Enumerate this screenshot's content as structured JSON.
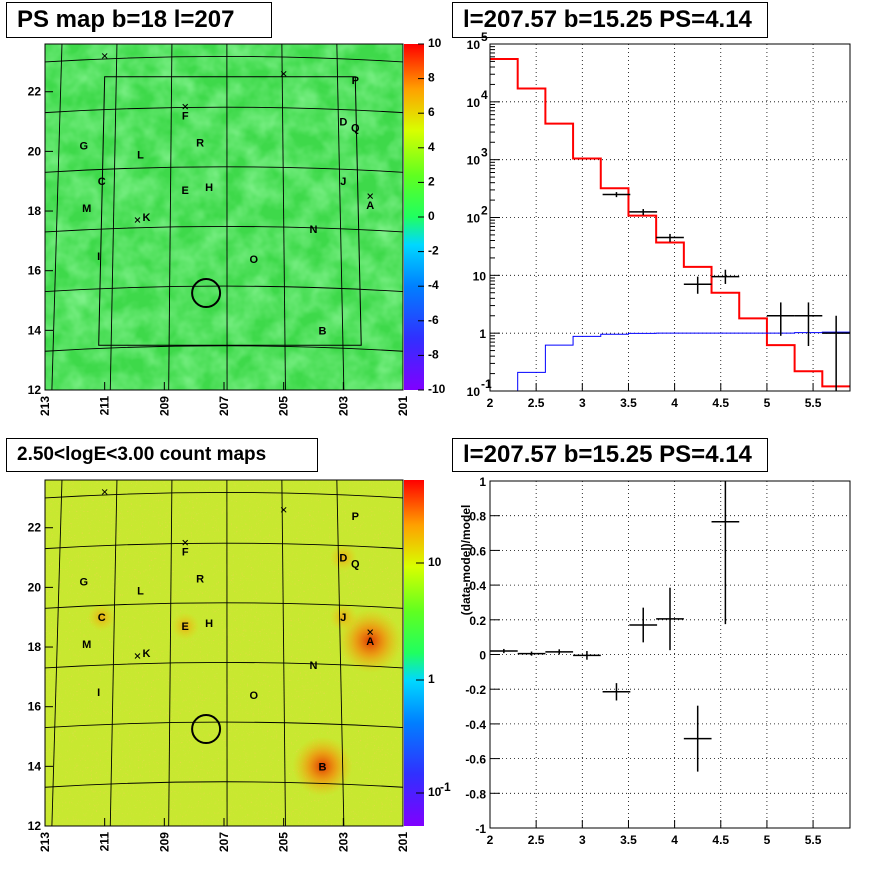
{
  "panels": {
    "ps_map": {
      "title": "PS map b=18 l=207",
      "x_ticks": [
        "213",
        "211",
        "209",
        "207",
        "205",
        "203",
        "201"
      ],
      "y_ticks": [
        "12",
        "14",
        "16",
        "18",
        "20",
        "22"
      ],
      "colorbar_ticks": [
        "10",
        "8",
        "6",
        "4",
        "2",
        "0",
        "-2",
        "-4",
        "-6",
        "-8",
        "-10"
      ]
    },
    "count_map": {
      "title": "2.50<logE<3.00 count maps",
      "x_ticks": [
        "213",
        "211",
        "209",
        "207",
        "205",
        "203",
        "201"
      ],
      "y_ticks": [
        "12",
        "14",
        "16",
        "18",
        "20",
        "22"
      ],
      "colorbar_ticks": [
        "10",
        "1",
        "10"
      ],
      "colorbar_exps": [
        "",
        "",
        "-1"
      ]
    },
    "spectrum": {
      "title": "l=207.57 b=15.25 PS=4.14"
    },
    "residual": {
      "title": "l=207.57 b=15.25 PS=4.14"
    }
  },
  "sources": [
    {
      "label": "A",
      "l": 202.1,
      "b": 18.2
    },
    {
      "label": "B",
      "l": 203.7,
      "b": 14.0
    },
    {
      "label": "C",
      "l": 211.1,
      "b": 19.0
    },
    {
      "label": "D",
      "l": 203.0,
      "b": 21.0
    },
    {
      "label": "E",
      "l": 208.3,
      "b": 18.7
    },
    {
      "label": "F",
      "l": 208.3,
      "b": 21.2
    },
    {
      "label": "G",
      "l": 211.7,
      "b": 20.2
    },
    {
      "label": "H",
      "l": 207.5,
      "b": 18.8
    },
    {
      "label": "I",
      "l": 211.2,
      "b": 16.5
    },
    {
      "label": "J",
      "l": 203.0,
      "b": 19.0
    },
    {
      "label": "K",
      "l": 209.6,
      "b": 17.8
    },
    {
      "label": "L",
      "l": 209.8,
      "b": 19.9
    },
    {
      "label": "M",
      "l": 211.6,
      "b": 18.1
    },
    {
      "label": "N",
      "l": 204.0,
      "b": 17.4
    },
    {
      "label": "O",
      "l": 206.0,
      "b": 16.4
    },
    {
      "label": "P",
      "l": 202.6,
      "b": 22.4
    },
    {
      "label": "Q",
      "l": 202.6,
      "b": 20.8
    },
    {
      "label": "R",
      "l": 207.8,
      "b": 20.3
    }
  ],
  "chart_data": [
    {
      "type": "heatmap",
      "title": "PS map b=18 l=207",
      "xlim": [
        213,
        201
      ],
      "ylim": [
        12,
        23.6
      ],
      "zlim": [
        -10,
        10
      ],
      "xticks": [
        213,
        211,
        209,
        207,
        205,
        203,
        201
      ],
      "yticks": [
        12,
        14,
        16,
        18,
        20,
        22
      ],
      "circle": {
        "l": 207.6,
        "b": 15.25
      }
    },
    {
      "type": "heatmap",
      "title": "2.50<logE<3.00 count maps",
      "xlim": [
        213,
        201
      ],
      "ylim": [
        12,
        23.6
      ],
      "zscale": "log",
      "xticks": [
        213,
        211,
        209,
        207,
        205,
        203,
        201
      ],
      "yticks": [
        12,
        14,
        16,
        18,
        20,
        22
      ],
      "circle": {
        "l": 207.6,
        "b": 15.25
      }
    },
    {
      "type": "line",
      "title": "l=207.57 b=15.25 PS=4.14",
      "xlim": [
        2,
        5.9
      ],
      "ylim": [
        0.1,
        100000
      ],
      "yscale": "log",
      "xticks": [
        2,
        2.5,
        3,
        3.5,
        4,
        4.5,
        5,
        5.5
      ],
      "yticks": [
        "10^-1",
        "1",
        "10",
        "10^2",
        "10^3",
        "10^4",
        "10^5"
      ],
      "grid": true,
      "series": [
        {
          "color": "#ff0000",
          "edges": [
            2,
            2.3,
            2.6,
            2.9,
            3.2,
            3.5,
            3.8,
            4.1,
            4.4,
            4.7,
            5.0,
            5.3,
            5.6,
            5.9
          ],
          "values": [
            55000,
            17000,
            4200,
            1050,
            320,
            108,
            37,
            14,
            5,
            1.8,
            0.62,
            0.22,
            0.12
          ]
        },
        {
          "color": "#0000ff",
          "edges": [
            2,
            2.3,
            2.6,
            2.9,
            3.2,
            3.5,
            3.8,
            4.1,
            4.4,
            4.7,
            5.0,
            5.3,
            5.6,
            5.9
          ],
          "values": [
            0.05,
            0.21,
            0.62,
            0.88,
            0.96,
            0.99,
            1.0,
            1.0,
            1.0,
            1.0,
            1.0,
            1.02,
            1.04
          ]
        },
        {
          "color": "#000000",
          "style": "points",
          "points": [
            {
              "x": 3.37,
              "xerr": 0.15,
              "y": 250,
              "ylo": 225,
              "yhi": 275
            },
            {
              "x": 3.66,
              "xerr": 0.15,
              "y": 125,
              "ylo": 110,
              "yhi": 140
            },
            {
              "x": 3.95,
              "xerr": 0.15,
              "y": 45,
              "ylo": 38,
              "yhi": 52
            },
            {
              "x": 4.25,
              "xerr": 0.15,
              "y": 7,
              "ylo": 4.8,
              "yhi": 9.5
            },
            {
              "x": 4.55,
              "xerr": 0.15,
              "y": 9.5,
              "ylo": 7.1,
              "yhi": 12.5
            },
            {
              "x": 5.15,
              "xerr": 0.15,
              "y": 2,
              "ylo": 0.9,
              "yhi": 3.4
            },
            {
              "x": 5.45,
              "xerr": 0.15,
              "y": 2,
              "ylo": 0.6,
              "yhi": 3.4
            },
            {
              "x": 5.75,
              "xerr": 0.15,
              "y": 1,
              "ylo": 0.1,
              "yhi": 2
            }
          ]
        }
      ]
    },
    {
      "type": "scatter",
      "title": "l=207.57 b=15.25 PS=4.14",
      "xlim": [
        2,
        5.9
      ],
      "ylim": [
        -1,
        1
      ],
      "ylabel": "(data-model)/model",
      "xticks": [
        2,
        2.5,
        3,
        3.5,
        4,
        4.5,
        5,
        5.5
      ],
      "yticks": [
        -1,
        -0.8,
        -0.6,
        -0.4,
        -0.2,
        0,
        0.2,
        0.4,
        0.6,
        0.8,
        1
      ],
      "grid": true,
      "series": [
        {
          "color": "#000000",
          "points": [
            {
              "x": 2.15,
              "xerr": 0.15,
              "y": 0.02,
              "yerr": 0.012
            },
            {
              "x": 2.45,
              "xerr": 0.15,
              "y": 0.005,
              "yerr": 0.012
            },
            {
              "x": 2.75,
              "xerr": 0.15,
              "y": 0.015,
              "yerr": 0.015
            },
            {
              "x": 3.05,
              "xerr": 0.15,
              "y": -0.005,
              "yerr": 0.025
            },
            {
              "x": 3.37,
              "xerr": 0.15,
              "y": -0.215,
              "yerr": 0.05
            },
            {
              "x": 3.66,
              "xerr": 0.15,
              "y": 0.17,
              "yerr": 0.1
            },
            {
              "x": 3.95,
              "xerr": 0.15,
              "y": 0.205,
              "yerr": 0.18
            },
            {
              "x": 4.25,
              "xerr": 0.15,
              "y": -0.485,
              "yerr": 0.19
            },
            {
              "x": 4.55,
              "xerr": 0.15,
              "y": 0.765,
              "yerr": 0.59
            }
          ]
        }
      ]
    }
  ]
}
